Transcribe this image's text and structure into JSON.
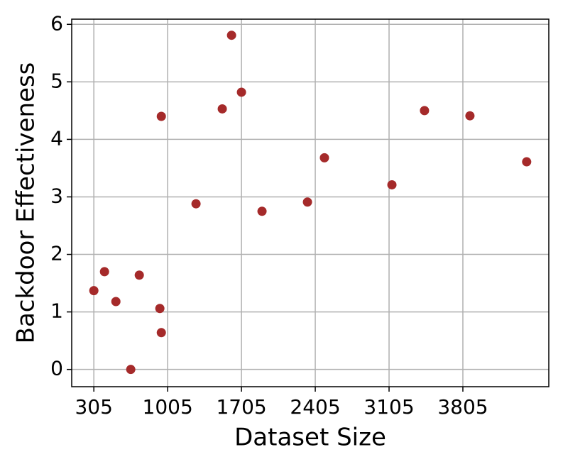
{
  "chart_data": {
    "type": "scatter",
    "xlabel": "Dataset Size",
    "ylabel": "Backdoor Effectiveness",
    "x": [
      305,
      406,
      514,
      655,
      736,
      931,
      945,
      945,
      1274,
      1523,
      1611,
      1705,
      1900,
      2331,
      2492,
      3132,
      3441,
      3872,
      4410
    ],
    "values": [
      1.37,
      1.7,
      1.18,
      0.0,
      1.64,
      1.06,
      4.4,
      0.64,
      2.88,
      4.53,
      5.81,
      4.82,
      2.75,
      2.91,
      3.68,
      3.21,
      4.5,
      4.41,
      3.61
    ],
    "color": "#a52a2a",
    "xlim": [
      95,
      4620
    ],
    "xticks": [
      305,
      1005,
      1705,
      2405,
      3105,
      3805
    ],
    "ylim": [
      -0.3,
      6.09
    ],
    "yticks": [
      0,
      1,
      2,
      3,
      4,
      5,
      6
    ],
    "grid": true
  }
}
